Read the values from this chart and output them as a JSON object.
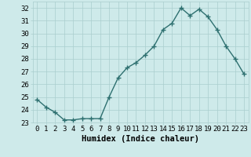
{
  "x": [
    0,
    1,
    2,
    3,
    4,
    5,
    6,
    7,
    8,
    9,
    10,
    11,
    12,
    13,
    14,
    15,
    16,
    17,
    18,
    19,
    20,
    21,
    22,
    23
  ],
  "y": [
    24.8,
    24.2,
    23.8,
    23.2,
    23.2,
    23.3,
    23.3,
    23.3,
    25.0,
    26.5,
    27.3,
    27.7,
    28.3,
    29.0,
    30.3,
    30.8,
    32.0,
    31.4,
    31.9,
    31.3,
    30.3,
    29.0,
    28.0,
    26.8
  ],
  "line_color": "#2e7070",
  "marker": "+",
  "markersize": 4,
  "bg_color": "#ceeaea",
  "grid_color": "#aacece",
  "xlabel": "Humidex (Indice chaleur)",
  "xlim": [
    -0.5,
    23.5
  ],
  "ylim": [
    23,
    32.5
  ],
  "yticks": [
    23,
    24,
    25,
    26,
    27,
    28,
    29,
    30,
    31,
    32
  ],
  "xticks": [
    0,
    1,
    2,
    3,
    4,
    5,
    6,
    7,
    8,
    9,
    10,
    11,
    12,
    13,
    14,
    15,
    16,
    17,
    18,
    19,
    20,
    21,
    22,
    23
  ],
  "xlabel_fontsize": 7.5,
  "tick_fontsize": 6.5,
  "linewidth": 1.0
}
